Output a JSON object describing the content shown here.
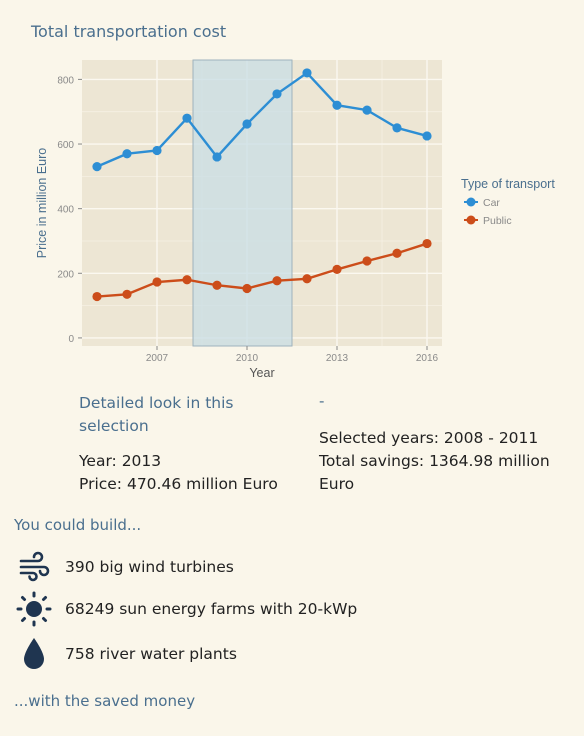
{
  "title": "Total transportation cost",
  "chart_data": {
    "type": "line",
    "x": [
      2005,
      2006,
      2007,
      2008,
      2009,
      2010,
      2011,
      2012,
      2013,
      2014,
      2015,
      2016
    ],
    "series": [
      {
        "name": "Car",
        "color": "#2d8ed4",
        "values": [
          530,
          570,
          580,
          680,
          560,
          662,
          755,
          820,
          720,
          705,
          650,
          625
        ]
      },
      {
        "name": "Public",
        "color": "#cc4d1a",
        "values": [
          128,
          135,
          173,
          180,
          163,
          153,
          177,
          183,
          212,
          238,
          262,
          292
        ]
      }
    ],
    "selection": {
      "from": 2008.2,
      "to": 2011.5,
      "color": "#c8dde6"
    },
    "xlabel": "Year",
    "ylabel": "Price in million Euro",
    "xticks": [
      2007,
      2010,
      2013,
      2016
    ],
    "yticks": [
      0,
      200,
      400,
      600,
      800
    ],
    "xlim": [
      2004.5,
      2016.5
    ],
    "ylim": [
      -25,
      860
    ],
    "legend_title": "Type of transport",
    "legend_position": "right",
    "grid": true
  },
  "detail": {
    "title": "Detailed look in this selection",
    "year": "Year: 2013",
    "price": "Price: 470.46 million Euro"
  },
  "selection_info": {
    "dash": "-",
    "years": "Selected years: 2008 - 2011",
    "savings": "Total savings: 1364.98 million Euro"
  },
  "build": {
    "heading": "You could build...",
    "items": [
      {
        "icon": "wind-icon",
        "label": "390 big wind turbines"
      },
      {
        "icon": "sun-icon",
        "label": "68249 sun energy farms with 20-kWp"
      },
      {
        "icon": "water-drop-icon",
        "label": "758 river water plants"
      }
    ],
    "footer": "...with the saved money"
  },
  "colors": {
    "accent": "#4a6f8e",
    "icon": "#1f3550",
    "panel": "#ede6d4",
    "background": "#faf6ea"
  }
}
